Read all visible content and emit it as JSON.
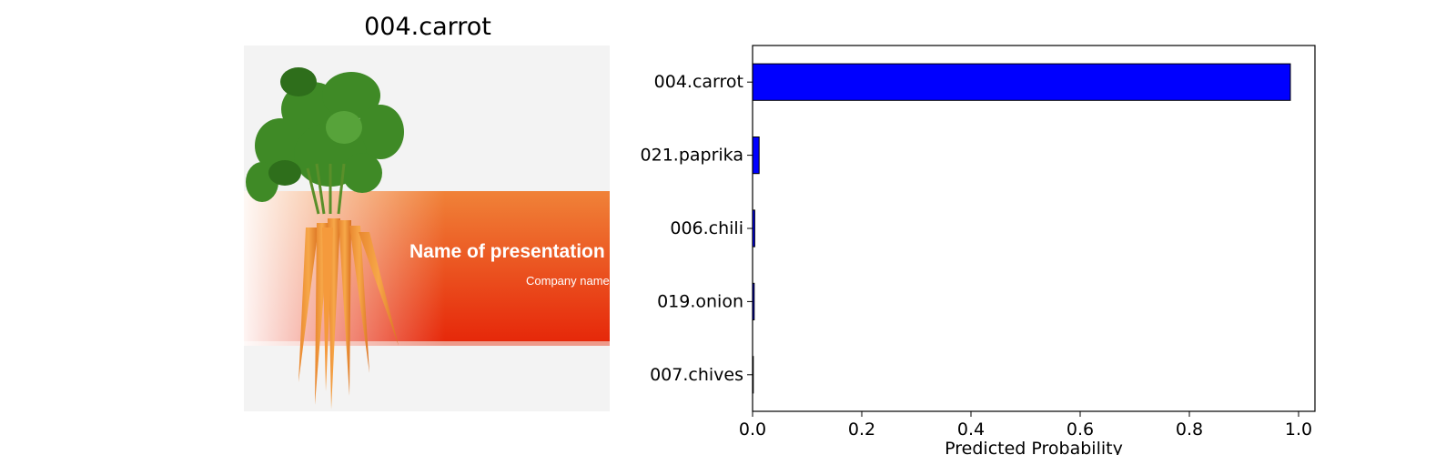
{
  "image_panel": {
    "title": "004.carrot",
    "photo": {
      "slide_heading": "Name of presentation",
      "slide_subheading": "Company name",
      "colors": {
        "banner_top": "#f08238",
        "banner_bottom": "#e6280a",
        "stripe": "#ee9a8a",
        "background": "#f3f3f3"
      }
    }
  },
  "chart_data": {
    "type": "bar",
    "orientation": "horizontal",
    "categories": [
      "004.carrot",
      "021.paprika",
      "006.chili",
      "019.onion",
      "007.chives"
    ],
    "values": [
      0.985,
      0.012,
      0.004,
      0.003,
      0.001
    ],
    "xlabel": "Predicted Probability",
    "ylabel": "",
    "xlim": [
      0.0,
      1.03
    ],
    "xticks": [
      0.0,
      0.2,
      0.4,
      0.6,
      0.8,
      1.0
    ],
    "xtick_labels": [
      "0.0",
      "0.2",
      "0.4",
      "0.6",
      "0.8",
      "1.0"
    ],
    "bar_color": "#0000ff",
    "edge_color": "#000000",
    "grid": false
  }
}
